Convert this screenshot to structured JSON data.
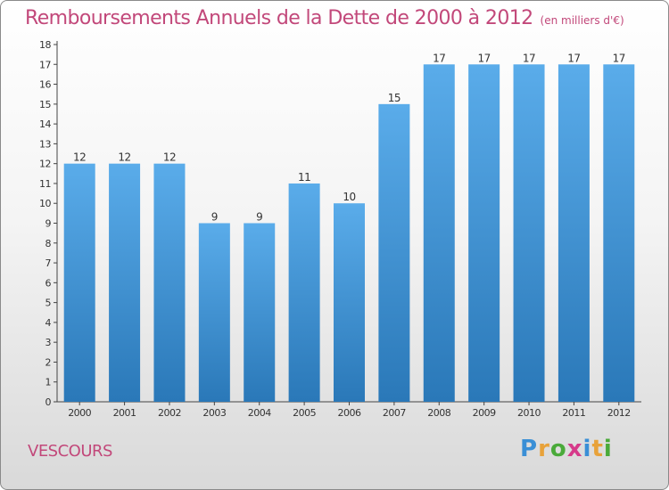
{
  "chart_data": {
    "type": "bar",
    "title": "Remboursements Annuels de la Dette de 2000 à 2012",
    "subtitle": "(en milliers d'€)",
    "categories": [
      "2000",
      "2001",
      "2002",
      "2003",
      "2004",
      "2005",
      "2006",
      "2007",
      "2008",
      "2009",
      "2010",
      "2011",
      "2012"
    ],
    "values": [
      12,
      12,
      12,
      9,
      9,
      11,
      10,
      15,
      17,
      17,
      17,
      17,
      17
    ],
    "ylim": [
      0,
      18
    ],
    "yticks": [
      0,
      1,
      2,
      3,
      4,
      5,
      6,
      7,
      8,
      9,
      10,
      11,
      12,
      13,
      14,
      15,
      16,
      17,
      18
    ],
    "grid": false,
    "bar_color_top": "#5aacea",
    "bar_color_bottom": "#2a78b8"
  },
  "commune": "VESCOURS",
  "logo": {
    "text": "Proxiti",
    "letters": [
      {
        "char": "P",
        "color": "#3a8fd6"
      },
      {
        "char": "r",
        "color": "#e8a23a"
      },
      {
        "char": "o",
        "color": "#4aaa3a"
      },
      {
        "char": "x",
        "color": "#d63a8a"
      },
      {
        "char": "i",
        "color": "#3a8fd6"
      },
      {
        "char": "t",
        "color": "#e8a23a"
      },
      {
        "char": "i",
        "color": "#4aaa3a"
      }
    ]
  }
}
